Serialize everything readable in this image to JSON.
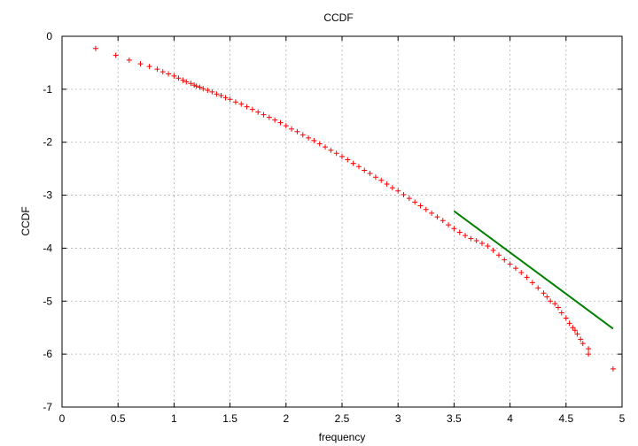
{
  "chart_data": {
    "type": "scatter",
    "title": "CCDF",
    "xlabel": "frequency",
    "ylabel": "CCDF",
    "xlim": [
      0,
      5
    ],
    "ylim": [
      -7,
      0
    ],
    "xticks": [
      0,
      0.5,
      1,
      1.5,
      2,
      2.5,
      3,
      3.5,
      4,
      4.5,
      5
    ],
    "yticks": [
      0,
      -1,
      -2,
      -3,
      -4,
      -5,
      -6,
      -7
    ],
    "grid": true,
    "legend": "none",
    "colors": {
      "points": "#ff0000",
      "fit": "#008000"
    },
    "series": [
      {
        "marker": "plus",
        "color": "#ff0000",
        "x": [
          0.3,
          0.48,
          0.6,
          0.7,
          0.78,
          0.85,
          0.9,
          0.95,
          1.0,
          1.04,
          1.08,
          1.11,
          1.15,
          1.18,
          1.2,
          1.23,
          1.26,
          1.3,
          1.34,
          1.38,
          1.42,
          1.46,
          1.5,
          1.55,
          1.6,
          1.65,
          1.7,
          1.75,
          1.8,
          1.85,
          1.9,
          1.95,
          2.0,
          2.05,
          2.1,
          2.15,
          2.2,
          2.25,
          2.3,
          2.35,
          2.4,
          2.45,
          2.5,
          2.55,
          2.6,
          2.65,
          2.7,
          2.75,
          2.8,
          2.85,
          2.9,
          2.95,
          3.0,
          3.05,
          3.1,
          3.15,
          3.2,
          3.25,
          3.3,
          3.35,
          3.4,
          3.45,
          3.5,
          3.55,
          3.6,
          3.65,
          3.7,
          3.75,
          3.8,
          3.85,
          3.9,
          3.95,
          4.0,
          4.05,
          4.1,
          4.15,
          4.2,
          4.25,
          4.3,
          4.33,
          4.36,
          4.4,
          4.43,
          4.46,
          4.5,
          4.53,
          4.56,
          4.58,
          4.6,
          4.63,
          4.65,
          4.7,
          4.7,
          4.92
        ],
        "y": [
          -0.23,
          -0.36,
          -0.45,
          -0.52,
          -0.57,
          -0.62,
          -0.67,
          -0.71,
          -0.75,
          -0.79,
          -0.83,
          -0.86,
          -0.89,
          -0.92,
          -0.94,
          -0.96,
          -0.99,
          -1.02,
          -1.05,
          -1.09,
          -1.12,
          -1.16,
          -1.19,
          -1.24,
          -1.28,
          -1.33,
          -1.38,
          -1.43,
          -1.48,
          -1.53,
          -1.58,
          -1.63,
          -1.69,
          -1.75,
          -1.8,
          -1.86,
          -1.92,
          -1.97,
          -2.03,
          -2.09,
          -2.15,
          -2.21,
          -2.27,
          -2.33,
          -2.4,
          -2.46,
          -2.53,
          -2.59,
          -2.66,
          -2.72,
          -2.79,
          -2.86,
          -2.92,
          -2.99,
          -3.06,
          -3.13,
          -3.2,
          -3.27,
          -3.34,
          -3.41,
          -3.48,
          -3.56,
          -3.63,
          -3.7,
          -3.76,
          -3.82,
          -3.86,
          -3.91,
          -3.96,
          -4.04,
          -4.13,
          -4.22,
          -4.3,
          -4.38,
          -4.46,
          -4.55,
          -4.65,
          -4.75,
          -4.85,
          -4.92,
          -5.0,
          -5.05,
          -5.12,
          -5.22,
          -5.32,
          -5.42,
          -5.5,
          -5.55,
          -5.62,
          -5.72,
          -5.8,
          -5.9,
          -6.0,
          -6.28
        ]
      },
      {
        "marker": "line",
        "color": "#008000",
        "x": [
          3.5,
          4.92
        ],
        "y": [
          -3.3,
          -5.52
        ]
      }
    ]
  }
}
